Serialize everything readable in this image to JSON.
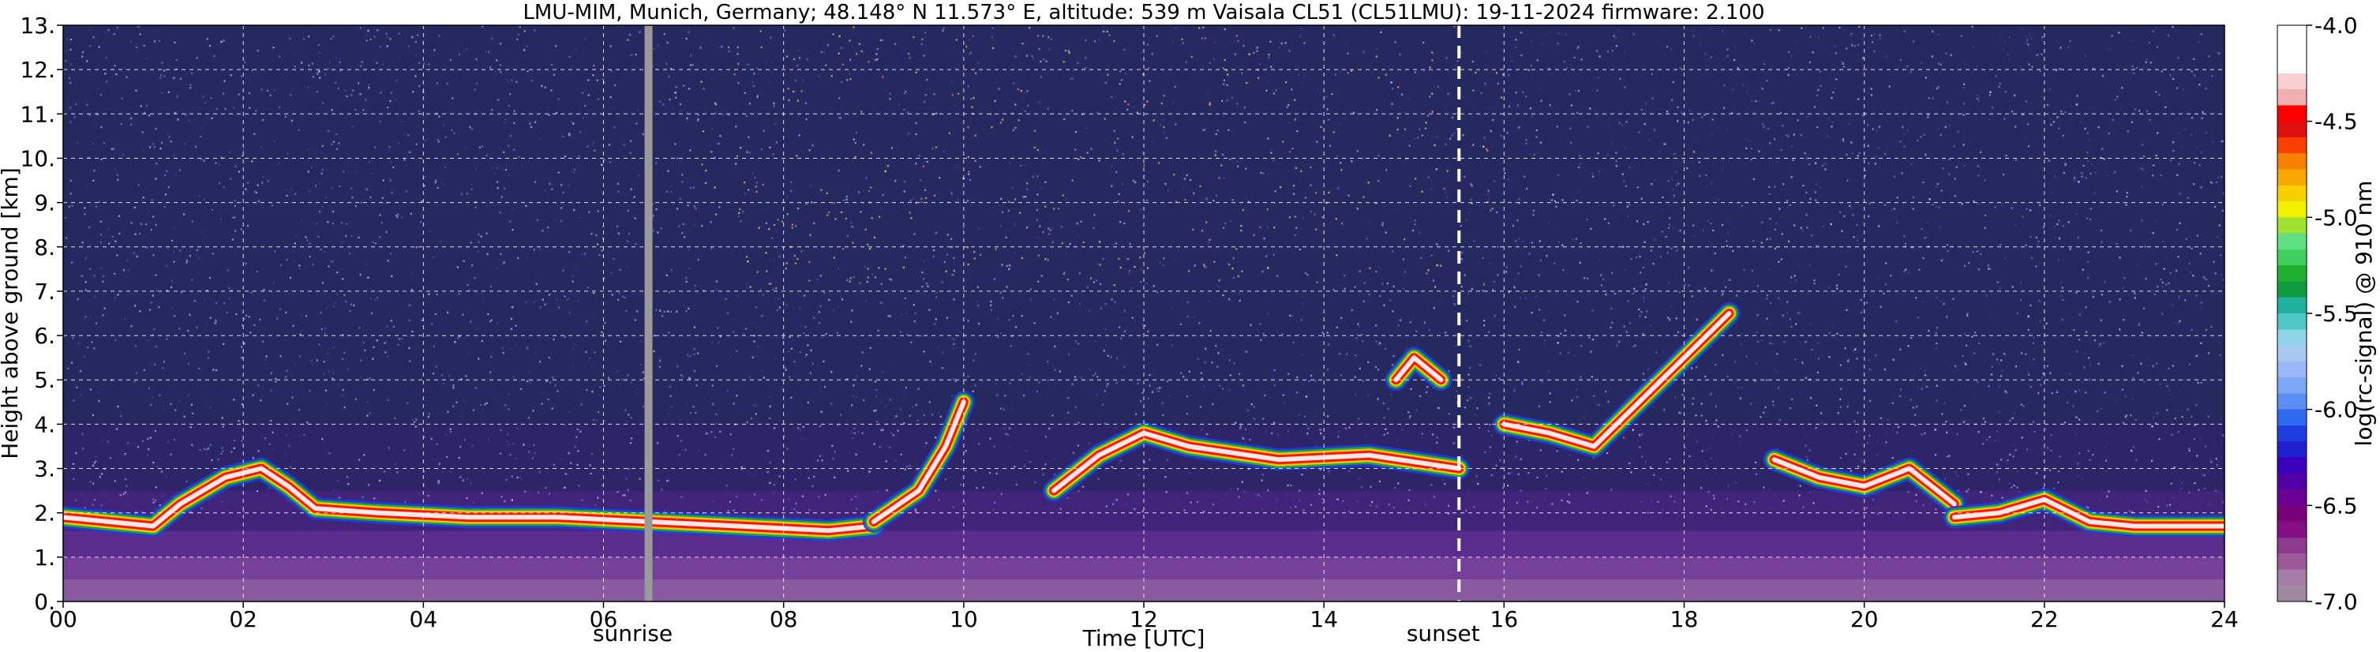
{
  "chart_data": {
    "type": "heatmap",
    "title": "LMU-MIM, Munich, Germany; 48.148° N 11.573° E, altitude: 539 m    Vaisala CL51 (CL51LMU): 19-11-2024    firmware: 2.100",
    "xlabel": "Time [UTC]",
    "ylabel": "Height above ground [km]",
    "colorbar_label": "log(rc-signal) @ 910 nm",
    "xlim": [
      0,
      24
    ],
    "ylim": [
      0,
      13
    ],
    "clim": [
      -7.0,
      -4.0
    ],
    "grid": true,
    "x_ticks": [
      {
        "value": 0,
        "label": "00"
      },
      {
        "value": 2,
        "label": "02"
      },
      {
        "value": 4,
        "label": "04"
      },
      {
        "value": 6,
        "label": "06"
      },
      {
        "value": 8,
        "label": "08"
      },
      {
        "value": 10,
        "label": "10"
      },
      {
        "value": 12,
        "label": "12"
      },
      {
        "value": 14,
        "label": "14"
      },
      {
        "value": 16,
        "label": "16"
      },
      {
        "value": 18,
        "label": "18"
      },
      {
        "value": 20,
        "label": "20"
      },
      {
        "value": 22,
        "label": "22"
      },
      {
        "value": 24,
        "label": "24"
      }
    ],
    "y_ticks": [
      {
        "value": 0,
        "label": "0."
      },
      {
        "value": 1,
        "label": "1."
      },
      {
        "value": 2,
        "label": "2."
      },
      {
        "value": 3,
        "label": "3."
      },
      {
        "value": 4,
        "label": "4."
      },
      {
        "value": 5,
        "label": "5."
      },
      {
        "value": 6,
        "label": "6."
      },
      {
        "value": 7,
        "label": "7."
      },
      {
        "value": 8,
        "label": "8."
      },
      {
        "value": 9,
        "label": "9."
      },
      {
        "value": 10,
        "label": "10."
      },
      {
        "value": 11,
        "label": "11."
      },
      {
        "value": 12,
        "label": "12."
      },
      {
        "value": 13,
        "label": "13."
      }
    ],
    "colorbar_ticks": [
      {
        "value": -4.0,
        "label": "-4.0"
      },
      {
        "value": -4.5,
        "label": "-4.5"
      },
      {
        "value": -5.0,
        "label": "-5.0"
      },
      {
        "value": -5.5,
        "label": "-5.5"
      },
      {
        "value": -6.0,
        "label": "-6.0"
      },
      {
        "value": -6.5,
        "label": "-6.5"
      },
      {
        "value": -7.0,
        "label": "-7.0"
      }
    ],
    "colormap": [
      "#9e8a9e",
      "#a57ca5",
      "#9a5a9a",
      "#8e3a8e",
      "#830f83",
      "#7a007a",
      "#6a0096",
      "#5200a6",
      "#3a00bb",
      "#2020d0",
      "#1f3ee0",
      "#2f6af0",
      "#5a8ef5",
      "#7ea8f7",
      "#9ab8f7",
      "#a8c8f0",
      "#8fd4e8",
      "#50c8c8",
      "#20b0a0",
      "#109a40",
      "#20b030",
      "#40d060",
      "#60e080",
      "#a0e030",
      "#f0f000",
      "#f8d000",
      "#f8a800",
      "#f88000",
      "#f84000",
      "#e01010",
      "#ff0000",
      "#f0b0b0",
      "#f6d0d0",
      "#ffffff",
      "#ffffff",
      "#ffffff"
    ],
    "markers": [
      {
        "name": "sunrise",
        "x": 6.5,
        "style": "solid-gray"
      },
      {
        "name": "sunset",
        "x": 15.5,
        "style": "dashed-white"
      }
    ],
    "features": [
      {
        "kind": "boundary_layer",
        "points": [
          [
            0,
            1.9
          ],
          [
            0.5,
            1.8
          ],
          [
            1,
            1.7
          ],
          [
            1.3,
            2.2
          ],
          [
            1.8,
            2.8
          ],
          [
            2.2,
            3.0
          ],
          [
            2.5,
            2.6
          ],
          [
            2.8,
            2.1
          ],
          [
            3.5,
            2.0
          ],
          [
            4.5,
            1.9
          ],
          [
            5.5,
            1.9
          ],
          [
            6.5,
            1.8
          ],
          [
            7.5,
            1.7
          ],
          [
            8.5,
            1.6
          ],
          [
            9.0,
            1.7
          ]
        ]
      },
      {
        "kind": "rising_layer",
        "points": [
          [
            9.0,
            1.8
          ],
          [
            9.5,
            2.5
          ],
          [
            9.8,
            3.5
          ],
          [
            10.0,
            4.5
          ]
        ]
      },
      {
        "kind": "cloud_layer",
        "points": [
          [
            11.0,
            2.5
          ],
          [
            11.5,
            3.3
          ],
          [
            12.0,
            3.8
          ],
          [
            12.5,
            3.5
          ],
          [
            13.5,
            3.2
          ],
          [
            14.5,
            3.3
          ],
          [
            15.5,
            3.0
          ]
        ]
      },
      {
        "kind": "elevated_cloud",
        "points": [
          [
            14.8,
            5.0
          ],
          [
            15.0,
            5.5
          ],
          [
            15.3,
            5.0
          ]
        ]
      },
      {
        "kind": "elevated_cloud",
        "points": [
          [
            16.0,
            4.0
          ],
          [
            16.5,
            3.8
          ],
          [
            17.0,
            3.5
          ],
          [
            17.5,
            4.5
          ],
          [
            18.0,
            5.5
          ],
          [
            18.5,
            6.5
          ]
        ]
      },
      {
        "kind": "cloud_layer",
        "points": [
          [
            19.0,
            3.2
          ],
          [
            19.5,
            2.8
          ],
          [
            20.0,
            2.6
          ],
          [
            20.5,
            3.0
          ],
          [
            21.0,
            2.2
          ]
        ]
      },
      {
        "kind": "boundary_layer",
        "points": [
          [
            21.0,
            1.9
          ],
          [
            21.5,
            2.0
          ],
          [
            22.0,
            2.3
          ],
          [
            22.5,
            1.8
          ],
          [
            23.0,
            1.7
          ],
          [
            24.0,
            1.7
          ]
        ]
      }
    ]
  }
}
